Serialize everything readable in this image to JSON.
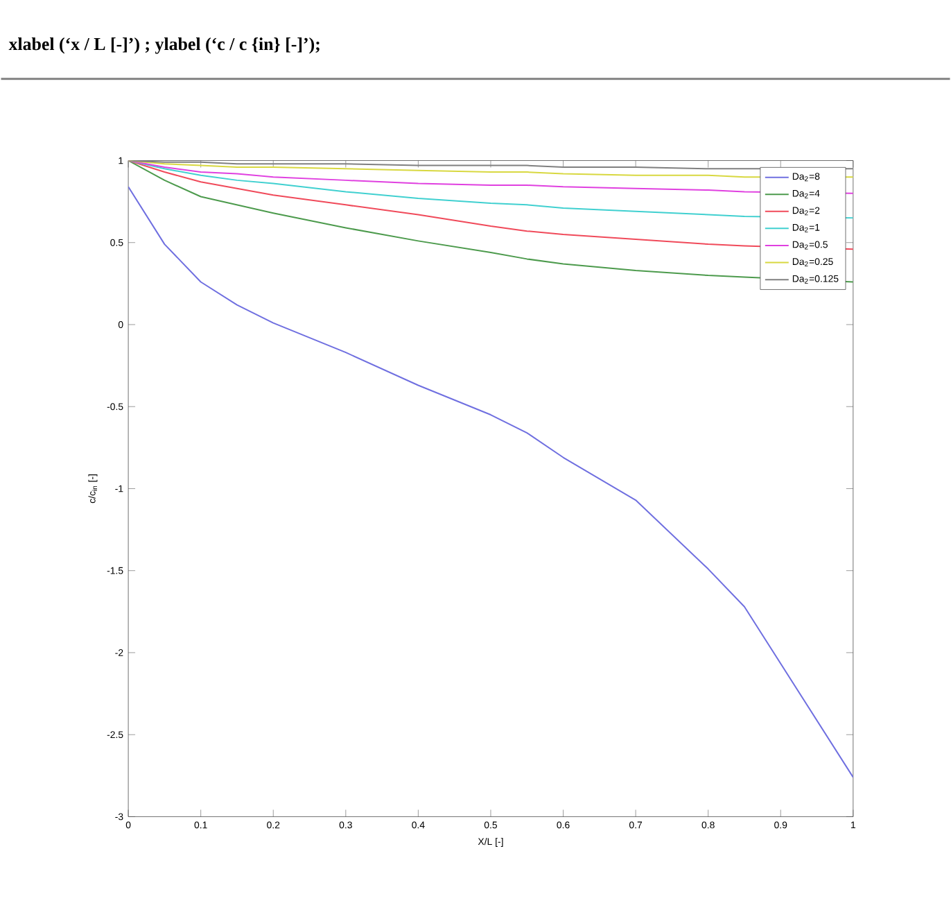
{
  "chart_data": {
    "type": "line",
    "title": "xlabel (‘x / L [-]’) ; ylabel (‘c / c {in} [-]’);",
    "xlabel": "X/L [-]",
    "ylabel": "c/c$_{in}$ [-]",
    "xlim": [
      0,
      1
    ],
    "ylim": [
      -3,
      1
    ],
    "xticks": [
      0,
      0.1,
      0.2,
      0.3,
      0.4,
      0.5,
      0.6,
      0.7,
      0.8,
      0.9,
      1
    ],
    "yticks": [
      -3,
      -2.5,
      -2,
      -1.5,
      -1,
      -0.5,
      0,
      0.5,
      1
    ],
    "grid": false,
    "legend": "top right",
    "marker": "none",
    "line_style": "solid",
    "x": [
      0,
      0.05,
      0.1,
      0.15,
      0.2,
      0.3,
      0.4,
      0.5,
      0.55,
      0.6,
      0.7,
      0.8,
      0.85,
      1
    ],
    "series": [
      {
        "name": "Da$_{2}$=8",
        "color": "#6f6fe0",
        "values": [
          0.84,
          0.49,
          0.26,
          0.12,
          0.01,
          -0.17,
          -0.37,
          -0.55,
          -0.66,
          -0.81,
          -1.07,
          -1.49,
          -1.72,
          -2.76
        ]
      },
      {
        "name": "Da$_{2}$=4",
        "color": "#4c9a4c",
        "values": [
          1,
          0.88,
          0.78,
          0.73,
          0.68,
          0.59,
          0.51,
          0.44,
          0.4,
          0.37,
          0.33,
          0.3,
          0.29,
          0.26
        ]
      },
      {
        "name": "Da$_{2}$=2",
        "color": "#f04a5a",
        "values": [
          1,
          0.93,
          0.87,
          0.83,
          0.79,
          0.73,
          0.67,
          0.6,
          0.57,
          0.55,
          0.52,
          0.49,
          0.48,
          0.46
        ]
      },
      {
        "name": "Da$_{2}$=1",
        "color": "#40d0d0",
        "values": [
          1,
          0.95,
          0.91,
          0.88,
          0.86,
          0.81,
          0.77,
          0.74,
          0.73,
          0.71,
          0.69,
          0.67,
          0.66,
          0.65
        ]
      },
      {
        "name": "Da$_{2}$=0.5",
        "color": "#e040e0",
        "values": [
          1,
          0.96,
          0.93,
          0.92,
          0.9,
          0.88,
          0.86,
          0.85,
          0.85,
          0.84,
          0.83,
          0.82,
          0.81,
          0.8
        ]
      },
      {
        "name": "Da$_{2}$=0.25",
        "color": "#d8d840",
        "values": [
          1,
          0.98,
          0.97,
          0.96,
          0.96,
          0.95,
          0.94,
          0.93,
          0.93,
          0.92,
          0.91,
          0.91,
          0.9,
          0.9
        ]
      },
      {
        "name": "Da$_{2}$=0.125",
        "color": "#808080",
        "values": [
          1,
          0.99,
          0.99,
          0.98,
          0.98,
          0.98,
          0.97,
          0.97,
          0.97,
          0.96,
          0.96,
          0.95,
          0.95,
          0.95
        ]
      }
    ]
  }
}
